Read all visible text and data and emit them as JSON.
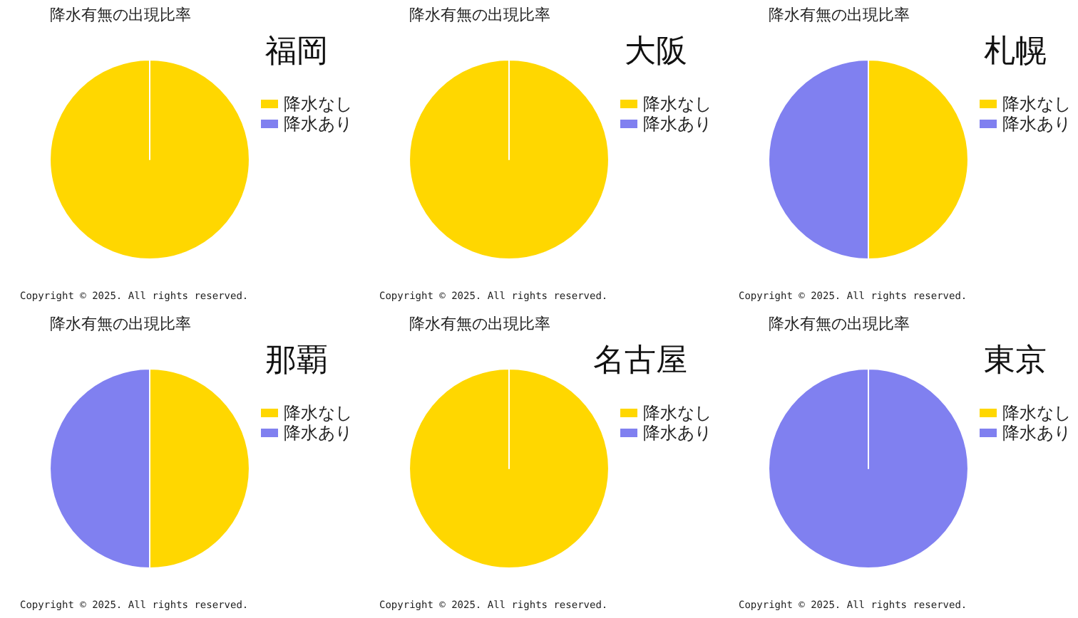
{
  "chart_data": [
    {
      "type": "pie",
      "title": "福岡",
      "subtitle": "降水有無の出現比率",
      "categories": [
        "降水なし",
        "降水あり"
      ],
      "values": [
        100,
        0
      ],
      "colors": [
        "#ffd700",
        "#8080f0"
      ],
      "legend": "right",
      "annotations": [
        "Copyright ©  2025. All rights reserved."
      ]
    },
    {
      "type": "pie",
      "title": "大阪",
      "subtitle": "降水有無の出現比率",
      "categories": [
        "降水なし",
        "降水あり"
      ],
      "values": [
        100,
        0
      ],
      "colors": [
        "#ffd700",
        "#8080f0"
      ],
      "legend": "right",
      "annotations": [
        "Copyright ©  2025. All rights reserved."
      ]
    },
    {
      "type": "pie",
      "title": "札幌",
      "subtitle": "降水有無の出現比率",
      "categories": [
        "降水なし",
        "降水あり"
      ],
      "values": [
        50,
        50
      ],
      "colors": [
        "#ffd700",
        "#8080f0"
      ],
      "legend": "right",
      "annotations": [
        "Copyright ©  2025. All rights reserved."
      ]
    },
    {
      "type": "pie",
      "title": "那覇",
      "subtitle": "降水有無の出現比率",
      "categories": [
        "降水なし",
        "降水あり"
      ],
      "values": [
        50,
        50
      ],
      "colors": [
        "#ffd700",
        "#8080f0"
      ],
      "legend": "right",
      "annotations": [
        "Copyright ©  2025. All rights reserved."
      ]
    },
    {
      "type": "pie",
      "title": "名古屋",
      "subtitle": "降水有無の出現比率",
      "categories": [
        "降水なし",
        "降水あり"
      ],
      "values": [
        100,
        0
      ],
      "colors": [
        "#ffd700",
        "#8080f0"
      ],
      "legend": "right",
      "annotations": [
        "Copyright ©  2025. All rights reserved."
      ]
    },
    {
      "type": "pie",
      "title": "東京",
      "subtitle": "降水有無の出現比率",
      "categories": [
        "降水なし",
        "降水あり"
      ],
      "values": [
        0,
        100
      ],
      "colors": [
        "#ffd700",
        "#8080f0"
      ],
      "legend": "right",
      "annotations": [
        "Copyright ©  2025. All rights reserved."
      ]
    }
  ]
}
